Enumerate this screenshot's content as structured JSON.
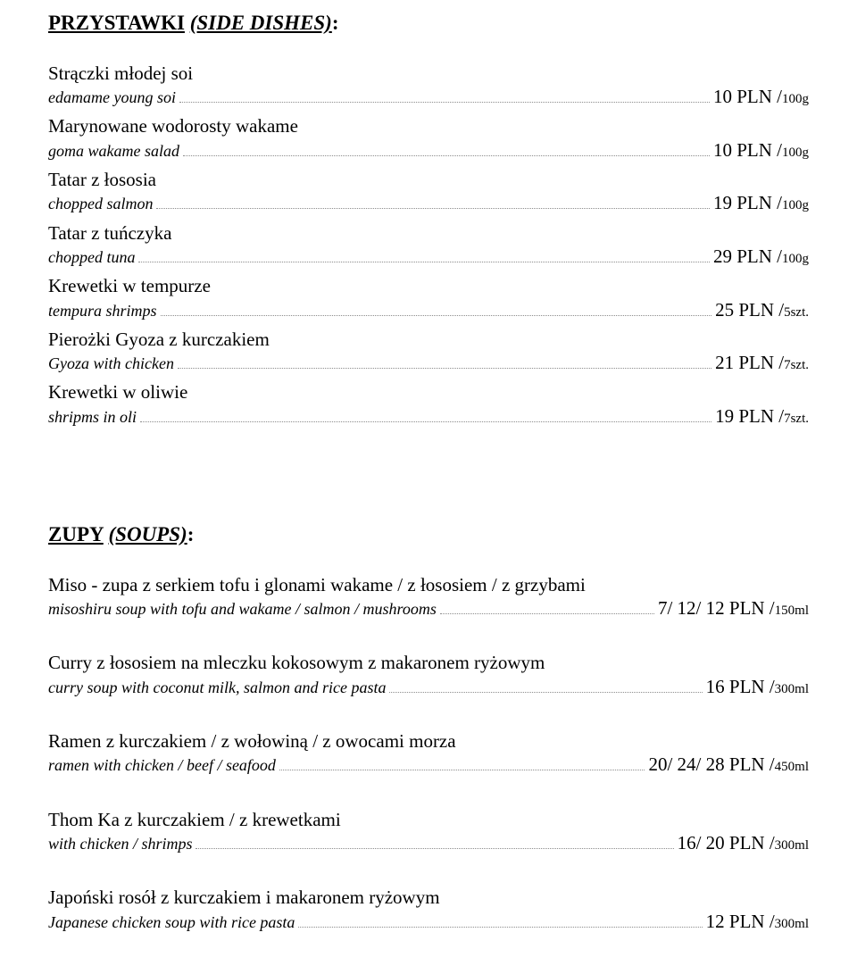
{
  "sections": {
    "side_dishes": {
      "heading_label": "PRZYSTAWKI",
      "heading_sub": "(SIDE DISHES)",
      "heading_suffix": ":",
      "items": [
        {
          "name": "Strączki młodej soi",
          "sub": "edamame young soi",
          "price_val": "10 PLN /",
          "price_unit": "100g"
        },
        {
          "name": "Marynowane wodorosty wakame",
          "sub": "goma wakame salad",
          "price_val": "10 PLN /",
          "price_unit": "100g"
        },
        {
          "name": "Tatar z łososia",
          "sub": "chopped salmon",
          "price_val": "19 PLN /",
          "price_unit": "100g"
        },
        {
          "name": "Tatar z tuńczyka",
          "sub": "chopped tuna",
          "price_val": "29 PLN /",
          "price_unit": "100g"
        },
        {
          "name": "Krewetki w tempurze",
          "sub": "tempura shrimps",
          "price_val": "25 PLN /",
          "price_unit": "5szt."
        },
        {
          "name": "Pierożki Gyoza z kurczakiem",
          "sub": "Gyoza with chicken",
          "price_val": "21 PLN /",
          "price_unit": "7szt."
        },
        {
          "name": "Krewetki w oliwie",
          "sub": "shripms in oli",
          "price_val": "19 PLN /",
          "price_unit": "7szt."
        }
      ]
    },
    "soups": {
      "heading_label": "ZUPY",
      "heading_sub": "(SOUPS)",
      "heading_suffix": ":",
      "items": [
        {
          "name": "Miso - zupa z serkiem tofu i glonami wakame / z łososiem / z grzybami",
          "sub": "misoshiru soup with tofu and wakame / salmon / mushrooms",
          "price_val": "7/ 12/ 12 PLN /",
          "price_unit": "150ml"
        },
        {
          "name": "Curry z łososiem na mleczku kokosowym z makaronem ryżowym",
          "sub": "curry soup with coconut milk, salmon and rice pasta",
          "price_val": "16 PLN /",
          "price_unit": "300ml"
        },
        {
          "name": "Ramen z kurczakiem / z wołowiną / z owocami morza",
          "sub": "ramen with chicken / beef / seafood",
          "price_val": "20/ 24/ 28 PLN /",
          "price_unit": "450ml"
        },
        {
          "name": "Thom Ka z kurczakiem / z krewetkami",
          "sub": "with chicken / shrimps",
          "price_val": "16/ 20 PLN /",
          "price_unit": "300ml"
        },
        {
          "name": "Japoński rosół z kurczakiem i makaronem ryżowym",
          "sub": "Japanese chicken soup with rice pasta",
          "price_val": "12 PLN /",
          "price_unit": "300ml"
        }
      ]
    }
  }
}
